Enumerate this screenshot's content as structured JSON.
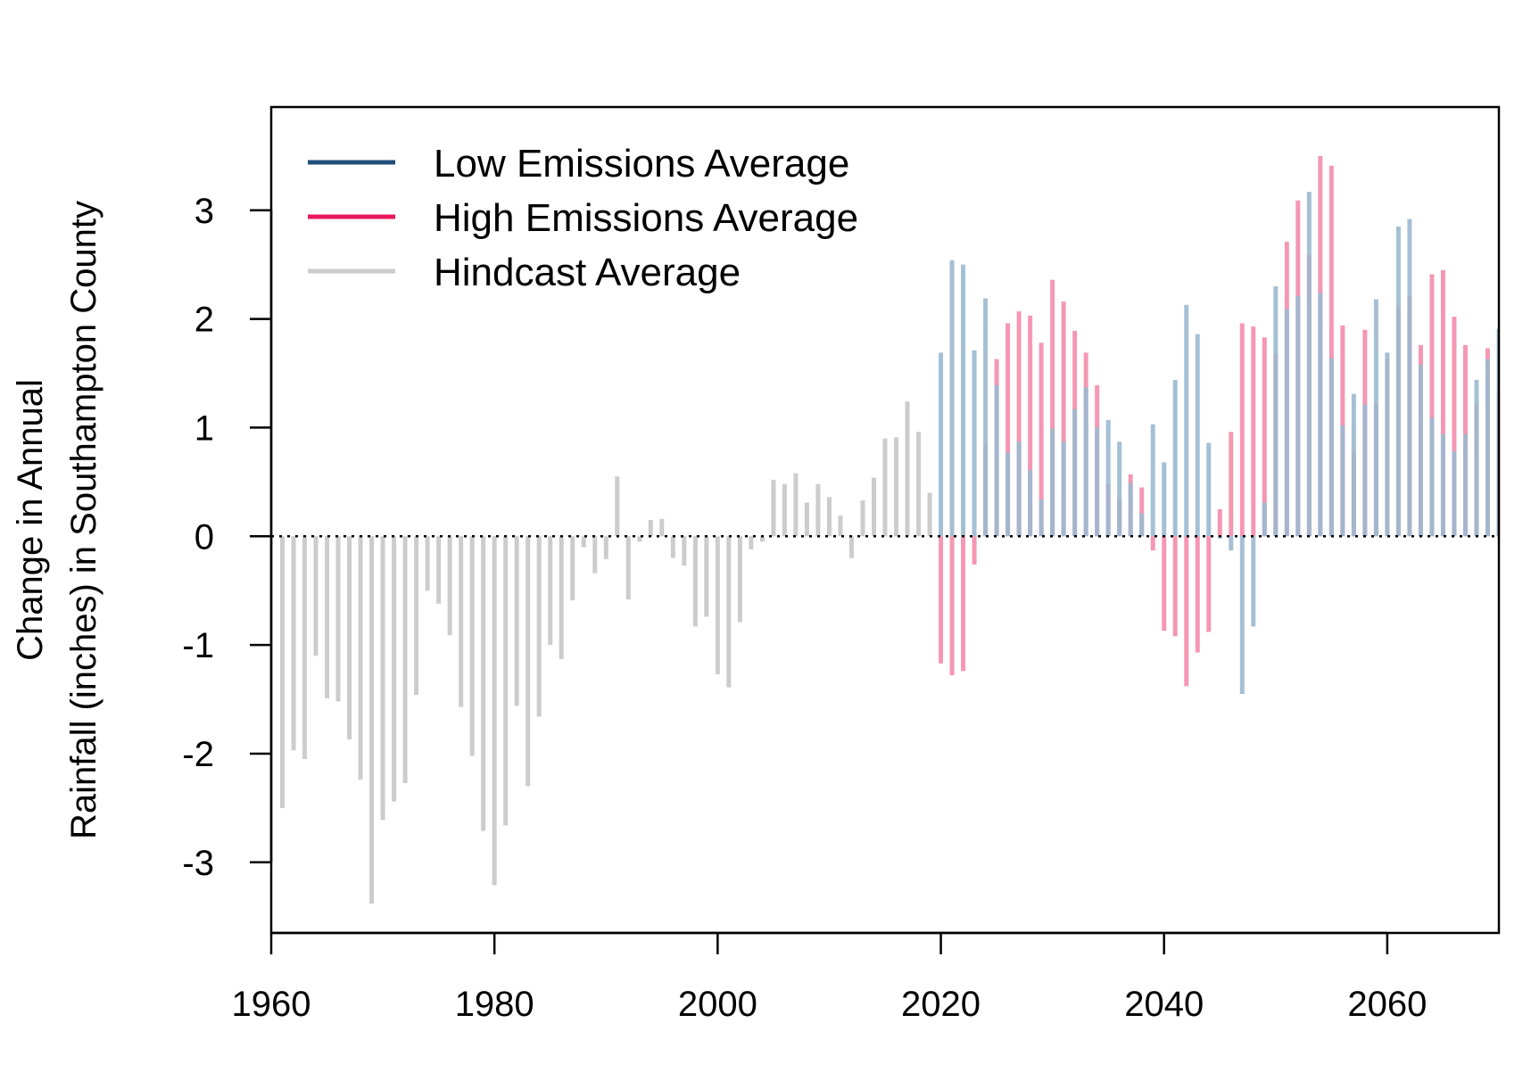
{
  "chart_data": {
    "type": "bar",
    "title": "",
    "xlabel": "",
    "ylabel_lines": [
      "Change in Annual",
      "Rainfall (inches) in Southampton County"
    ],
    "xlim": [
      1960,
      2070
    ],
    "ylim": [
      -3.65,
      3.95
    ],
    "xticks": [
      "1960",
      "1980",
      "2000",
      "2020",
      "2040",
      "2060"
    ],
    "yticks": [
      "-3",
      "-2",
      "-1",
      "0",
      "1",
      "2",
      "3"
    ],
    "zero_line": "dotted",
    "grid": false,
    "legend_position": "top-left",
    "legend": [
      {
        "label": "Low Emissions Average",
        "color": "#1f4e79"
      },
      {
        "label": "High Emissions Average",
        "color": "#e8195a"
      },
      {
        "label": "Hindcast Average",
        "color": "#cccccc"
      }
    ],
    "series": [
      {
        "name": "Hindcast Average",
        "color": "#cccccc",
        "x": [
          1961,
          1962,
          1963,
          1964,
          1965,
          1966,
          1967,
          1968,
          1969,
          1970,
          1971,
          1972,
          1973,
          1974,
          1975,
          1976,
          1977,
          1978,
          1979,
          1980,
          1981,
          1982,
          1983,
          1984,
          1985,
          1986,
          1987,
          1988,
          1989,
          1990,
          1991,
          1992,
          1993,
          1994,
          1995,
          1996,
          1997,
          1998,
          1999,
          2000,
          2001,
          2002,
          2003,
          2004,
          2005,
          2006,
          2007,
          2008,
          2009,
          2010,
          2011,
          2012,
          2013,
          2014,
          2015,
          2016,
          2017,
          2018,
          2019
        ],
        "values": [
          -2.5,
          -1.97,
          -2.05,
          -1.1,
          -1.49,
          -1.52,
          -1.87,
          -2.24,
          -3.38,
          -2.61,
          -2.44,
          -2.27,
          -1.46,
          -0.5,
          -0.62,
          -0.91,
          -1.57,
          -2.02,
          -2.71,
          -3.21,
          -2.66,
          -1.56,
          -2.3,
          -1.66,
          -1.0,
          -1.13,
          -0.59,
          -0.1,
          -0.34,
          -0.21,
          0.55,
          -0.58,
          -0.05,
          0.15,
          0.16,
          -0.2,
          -0.27,
          -0.83,
          -0.74,
          -1.27,
          -1.39,
          -0.79,
          -0.12,
          -0.05,
          0.52,
          0.48,
          0.58,
          0.31,
          0.48,
          0.36,
          0.19,
          -0.2,
          0.33,
          0.54,
          0.9,
          0.91,
          1.24,
          0.96,
          0.4
        ]
      },
      {
        "name": "High Emissions Average",
        "color": "#f48cab",
        "x": [
          2020,
          2021,
          2022,
          2023,
          2024,
          2025,
          2026,
          2027,
          2028,
          2029,
          2030,
          2031,
          2032,
          2033,
          2034,
          2035,
          2036,
          2037,
          2038,
          2039,
          2040,
          2041,
          2042,
          2043,
          2044,
          2045,
          2046,
          2047,
          2048,
          2049,
          2050,
          2051,
          2052,
          2053,
          2054,
          2055,
          2056,
          2057,
          2058,
          2059,
          2060,
          2061,
          2062,
          2063,
          2064,
          2065,
          2066,
          2067,
          2068,
          2069,
          2070
        ],
        "values": [
          -1.17,
          -1.28,
          -1.24,
          -0.26,
          0.85,
          1.63,
          1.96,
          2.07,
          2.03,
          1.78,
          2.36,
          2.16,
          1.89,
          1.69,
          1.39,
          0.48,
          0.35,
          0.57,
          0.45,
          -0.13,
          -0.87,
          -0.92,
          -1.38,
          -1.07,
          -0.88,
          0.25,
          0.96,
          1.96,
          1.93,
          1.83,
          1.68,
          2.71,
          3.09,
          2.59,
          3.5,
          3.41,
          1.94,
          0.77,
          1.9,
          1.22,
          1.63,
          2.11,
          2.21,
          1.76,
          2.41,
          2.45,
          2.02,
          1.76,
          1.22,
          1.73,
          1.37
        ]
      },
      {
        "name": "Low Emissions Average",
        "color": "#9bb9d0",
        "x": [
          2020,
          2021,
          2022,
          2023,
          2024,
          2025,
          2026,
          2027,
          2028,
          2029,
          2030,
          2031,
          2032,
          2033,
          2034,
          2035,
          2036,
          2037,
          2038,
          2039,
          2040,
          2041,
          2042,
          2043,
          2044,
          2045,
          2046,
          2047,
          2048,
          2049,
          2050,
          2051,
          2052,
          2053,
          2054,
          2055,
          2056,
          2057,
          2058,
          2059,
          2060,
          2061,
          2062,
          2063,
          2064,
          2065,
          2066,
          2067,
          2068,
          2069,
          2070
        ],
        "values": [
          1.69,
          2.54,
          2.5,
          1.71,
          2.19,
          1.39,
          0.77,
          0.87,
          0.61,
          0.34,
          0.99,
          0.87,
          1.17,
          1.37,
          1.0,
          1.07,
          0.87,
          0.49,
          0.21,
          1.03,
          0.68,
          1.44,
          2.13,
          1.86,
          0.86,
          -0.02,
          -0.13,
          -1.45,
          -0.83,
          0.31,
          2.3,
          2.09,
          2.21,
          3.17,
          2.24,
          1.64,
          1.02,
          1.31,
          1.21,
          2.18,
          1.69,
          2.85,
          2.92,
          1.58,
          1.09,
          0.94,
          0.78,
          0.94,
          1.44,
          1.63,
          1.91
        ]
      }
    ]
  }
}
